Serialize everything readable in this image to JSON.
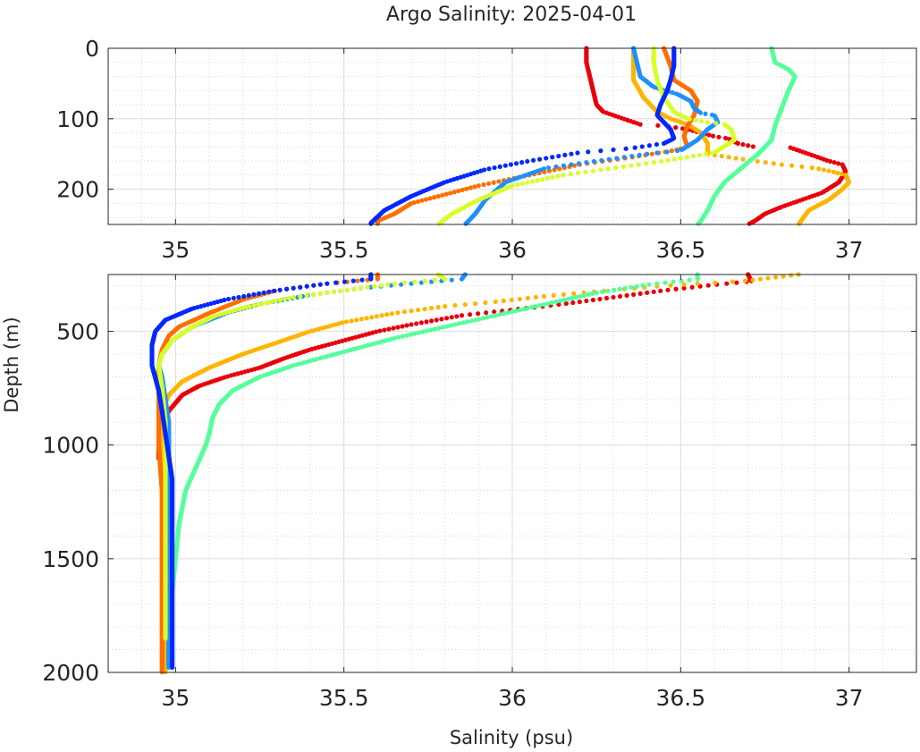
{
  "chart_data": {
    "type": "scatter",
    "title": "Argo Salinity: 2025-04-01",
    "xlabel": "Salinity (psu)",
    "ylabel": "Depth (m)",
    "grid": true,
    "legend": "none",
    "panels": [
      {
        "name": "upper",
        "xlim": [
          34.8,
          37.2
        ],
        "ylim": [
          0,
          250
        ],
        "y_reversed": true,
        "xticks": [
          35,
          35.5,
          36,
          36.5,
          37
        ],
        "xtick_labels": [
          "35",
          "35.5",
          "36",
          "36.5",
          "37"
        ],
        "yticks": [
          0,
          100,
          200
        ],
        "ytick_labels": [
          "0",
          "100",
          "200"
        ]
      },
      {
        "name": "lower",
        "xlim": [
          34.8,
          37.2
        ],
        "ylim": [
          250,
          2000
        ],
        "y_reversed": true,
        "xticks": [
          35,
          35.5,
          36,
          36.5,
          37
        ],
        "xtick_labels": [
          "35",
          "35.5",
          "36",
          "36.5",
          "37"
        ],
        "yticks": [
          500,
          1000,
          1500,
          2000
        ],
        "ytick_labels": [
          "500",
          "1000",
          "1500",
          "2000"
        ]
      }
    ],
    "series": [
      {
        "color": "#e8000b",
        "points": [
          [
            36.22,
            0
          ],
          [
            36.22,
            20
          ],
          [
            36.23,
            40
          ],
          [
            36.24,
            60
          ],
          [
            36.25,
            80
          ],
          [
            36.27,
            90
          ],
          [
            36.3,
            95
          ],
          [
            36.33,
            100
          ],
          [
            36.38,
            108
          ],
          [
            36.45,
            110
          ],
          [
            36.52,
            115
          ],
          [
            36.6,
            125
          ],
          [
            36.64,
            128
          ],
          [
            36.67,
            135
          ],
          [
            36.72,
            140
          ],
          [
            36.82,
            140
          ],
          [
            36.88,
            150
          ],
          [
            36.94,
            160
          ],
          [
            36.98,
            165
          ],
          [
            36.99,
            175
          ],
          [
            36.97,
            190
          ],
          [
            36.92,
            205
          ],
          [
            36.86,
            215
          ],
          [
            36.8,
            225
          ],
          [
            36.75,
            235
          ],
          [
            36.72,
            245
          ],
          [
            36.7,
            250
          ],
          [
            36.71,
            280
          ],
          [
            36.6,
            295
          ],
          [
            36.45,
            320
          ],
          [
            36.3,
            350
          ],
          [
            36.15,
            380
          ],
          [
            36.0,
            405
          ],
          [
            35.85,
            430
          ],
          [
            35.7,
            470
          ],
          [
            35.6,
            500
          ],
          [
            35.5,
            540
          ],
          [
            35.4,
            580
          ],
          [
            35.32,
            620
          ],
          [
            35.25,
            660
          ],
          [
            35.15,
            700
          ],
          [
            35.07,
            740
          ],
          [
            35.02,
            780
          ],
          [
            34.98,
            850
          ],
          [
            34.96,
            920
          ],
          [
            34.95,
            1000
          ],
          [
            34.95,
            1060
          ]
        ]
      },
      {
        "color": "#ffb400",
        "points": [
          [
            36.36,
            0
          ],
          [
            36.36,
            20
          ],
          [
            36.36,
            45
          ],
          [
            36.39,
            70
          ],
          [
            36.43,
            90
          ],
          [
            36.47,
            100
          ],
          [
            36.52,
            108
          ],
          [
            36.56,
            120
          ],
          [
            36.58,
            135
          ],
          [
            36.58,
            150
          ],
          [
            36.65,
            155
          ],
          [
            36.72,
            160
          ],
          [
            36.8,
            165
          ],
          [
            36.9,
            170
          ],
          [
            36.95,
            175
          ],
          [
            36.99,
            180
          ],
          [
            37.0,
            190
          ],
          [
            36.98,
            200
          ],
          [
            36.94,
            215
          ],
          [
            36.88,
            230
          ],
          [
            36.85,
            250
          ],
          [
            36.68,
            280
          ],
          [
            36.55,
            290
          ],
          [
            36.4,
            305
          ],
          [
            36.25,
            325
          ],
          [
            36.1,
            345
          ],
          [
            35.95,
            370
          ],
          [
            35.8,
            390
          ],
          [
            35.65,
            420
          ],
          [
            35.5,
            460
          ],
          [
            35.4,
            500
          ],
          [
            35.3,
            550
          ],
          [
            35.2,
            600
          ],
          [
            35.1,
            660
          ],
          [
            35.02,
            720
          ],
          [
            34.98,
            780
          ],
          [
            34.96,
            850
          ],
          [
            34.96,
            950
          ],
          [
            34.96,
            1100
          ],
          [
            34.97,
            1300
          ],
          [
            34.97,
            1500
          ],
          [
            34.97,
            1700
          ],
          [
            34.97,
            2000
          ]
        ]
      },
      {
        "color": "#ff6e00",
        "points": [
          [
            36.45,
            0
          ],
          [
            36.47,
            25
          ],
          [
            36.48,
            45
          ],
          [
            36.53,
            60
          ],
          [
            36.55,
            75
          ],
          [
            36.54,
            95
          ],
          [
            36.52,
            110
          ],
          [
            36.51,
            125
          ],
          [
            36.52,
            140
          ],
          [
            36.48,
            145
          ],
          [
            36.35,
            155
          ],
          [
            36.2,
            165
          ],
          [
            36.05,
            180
          ],
          [
            35.9,
            195
          ],
          [
            35.78,
            210
          ],
          [
            35.7,
            220
          ],
          [
            35.65,
            235
          ],
          [
            35.6,
            245
          ],
          [
            35.6,
            270
          ],
          [
            35.45,
            290
          ],
          [
            35.3,
            320
          ],
          [
            35.2,
            360
          ],
          [
            35.1,
            420
          ],
          [
            35.01,
            480
          ],
          [
            34.98,
            520
          ],
          [
            34.96,
            580
          ],
          [
            34.95,
            650
          ],
          [
            34.95,
            750
          ],
          [
            34.95,
            850
          ],
          [
            34.95,
            1000
          ],
          [
            34.96,
            1200
          ],
          [
            34.96,
            1400
          ],
          [
            34.96,
            1600
          ],
          [
            34.96,
            1800
          ],
          [
            34.96,
            2000
          ]
        ]
      },
      {
        "color": "#1e91ff",
        "points": [
          [
            36.36,
            0
          ],
          [
            36.37,
            20
          ],
          [
            36.38,
            40
          ],
          [
            36.42,
            55
          ],
          [
            36.49,
            65
          ],
          [
            36.53,
            75
          ],
          [
            36.54,
            85
          ],
          [
            36.56,
            92
          ],
          [
            36.6,
            95
          ],
          [
            36.61,
            105
          ],
          [
            36.58,
            115
          ],
          [
            36.55,
            130
          ],
          [
            36.5,
            145
          ],
          [
            36.4,
            150
          ],
          [
            36.25,
            160
          ],
          [
            36.1,
            170
          ],
          [
            35.98,
            190
          ],
          [
            35.92,
            215
          ],
          [
            35.89,
            235
          ],
          [
            35.86,
            250
          ],
          [
            35.85,
            270
          ],
          [
            35.7,
            290
          ],
          [
            35.55,
            310
          ],
          [
            35.4,
            340
          ],
          [
            35.25,
            380
          ],
          [
            35.15,
            420
          ],
          [
            35.05,
            480
          ],
          [
            34.99,
            540
          ],
          [
            34.96,
            600
          ],
          [
            34.95,
            650
          ],
          [
            34.96,
            700
          ],
          [
            34.97,
            800
          ],
          [
            34.98,
            900
          ],
          [
            34.98,
            1000
          ],
          [
            34.98,
            1200
          ],
          [
            34.98,
            1400
          ],
          [
            34.98,
            1600
          ],
          [
            34.98,
            1800
          ],
          [
            34.98,
            1980
          ]
        ]
      },
      {
        "color": "#d7ff28",
        "points": [
          [
            36.42,
            0
          ],
          [
            36.42,
            20
          ],
          [
            36.43,
            45
          ],
          [
            36.45,
            70
          ],
          [
            36.48,
            90
          ],
          [
            36.52,
            100
          ],
          [
            36.58,
            105
          ],
          [
            36.63,
            108
          ],
          [
            36.65,
            115
          ],
          [
            36.66,
            130
          ],
          [
            36.6,
            148
          ],
          [
            36.45,
            160
          ],
          [
            36.3,
            170
          ],
          [
            36.15,
            180
          ],
          [
            36.0,
            195
          ],
          [
            35.9,
            215
          ],
          [
            35.82,
            235
          ],
          [
            35.78,
            250
          ],
          [
            35.8,
            270
          ],
          [
            35.65,
            290
          ],
          [
            35.5,
            320
          ],
          [
            35.35,
            350
          ],
          [
            35.22,
            390
          ],
          [
            35.12,
            430
          ],
          [
            35.05,
            480
          ],
          [
            34.99,
            540
          ],
          [
            34.96,
            600
          ],
          [
            34.95,
            650
          ],
          [
            34.96,
            750
          ],
          [
            34.97,
            900
          ],
          [
            34.97,
            1100
          ],
          [
            34.97,
            1300
          ],
          [
            34.97,
            1500
          ],
          [
            34.97,
            1700
          ],
          [
            34.97,
            1850
          ]
        ]
      },
      {
        "color": "#55ff9b",
        "points": [
          [
            36.77,
            0
          ],
          [
            36.78,
            20
          ],
          [
            36.82,
            30
          ],
          [
            36.84,
            40
          ],
          [
            36.82,
            60
          ],
          [
            36.8,
            85
          ],
          [
            36.78,
            110
          ],
          [
            36.77,
            130
          ],
          [
            36.73,
            150
          ],
          [
            36.68,
            170
          ],
          [
            36.63,
            190
          ],
          [
            36.6,
            210
          ],
          [
            36.58,
            230
          ],
          [
            36.56,
            245
          ],
          [
            36.55,
            250
          ],
          [
            36.55,
            270
          ],
          [
            36.4,
            295
          ],
          [
            36.25,
            330
          ],
          [
            36.1,
            380
          ],
          [
            35.95,
            430
          ],
          [
            35.8,
            480
          ],
          [
            35.65,
            530
          ],
          [
            35.5,
            590
          ],
          [
            35.35,
            650
          ],
          [
            35.25,
            700
          ],
          [
            35.17,
            760
          ],
          [
            35.13,
            820
          ],
          [
            35.11,
            880
          ],
          [
            35.1,
            950
          ],
          [
            35.09,
            1000
          ],
          [
            35.06,
            1100
          ],
          [
            35.03,
            1200
          ],
          [
            35.01,
            1350
          ],
          [
            35.0,
            1500
          ],
          [
            34.99,
            1650
          ],
          [
            34.99,
            1800
          ],
          [
            34.99,
            1950
          ]
        ]
      },
      {
        "color": "#0028ff",
        "points": [
          [
            36.48,
            0
          ],
          [
            36.48,
            25
          ],
          [
            36.47,
            45
          ],
          [
            36.46,
            60
          ],
          [
            36.44,
            80
          ],
          [
            36.43,
            95
          ],
          [
            36.45,
            105
          ],
          [
            36.47,
            115
          ],
          [
            36.48,
            128
          ],
          [
            36.45,
            135
          ],
          [
            36.35,
            142
          ],
          [
            36.2,
            148
          ],
          [
            36.05,
            160
          ],
          [
            35.92,
            172
          ],
          [
            35.8,
            190
          ],
          [
            35.7,
            210
          ],
          [
            35.62,
            230
          ],
          [
            35.58,
            248
          ],
          [
            35.58,
            270
          ],
          [
            35.45,
            290
          ],
          [
            35.3,
            320
          ],
          [
            35.15,
            360
          ],
          [
            35.05,
            400
          ],
          [
            34.97,
            450
          ],
          [
            34.94,
            500
          ],
          [
            34.93,
            560
          ],
          [
            34.93,
            650
          ],
          [
            34.95,
            760
          ],
          [
            34.96,
            850
          ],
          [
            34.97,
            950
          ],
          [
            34.98,
            1050
          ],
          [
            34.99,
            1150
          ],
          [
            34.99,
            1300
          ],
          [
            34.99,
            1500
          ],
          [
            34.99,
            1650
          ],
          [
            34.99,
            1800
          ],
          [
            34.99,
            1980
          ]
        ]
      }
    ]
  }
}
